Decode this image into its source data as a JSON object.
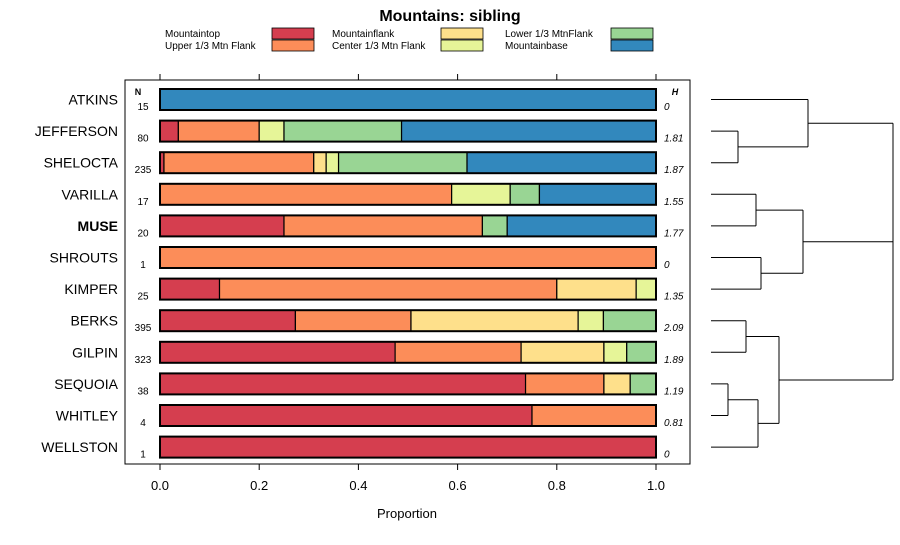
{
  "chart_data": {
    "type": "stacked-horizontal-bar",
    "title": "Mountains: sibling",
    "xlabel": "Proportion",
    "xlim": [
      0,
      1
    ],
    "xticks": [
      "0.0",
      "0.2",
      "0.4",
      "0.6",
      "0.8",
      "1.0"
    ],
    "n_header": "N",
    "h_header": "H",
    "legend": [
      {
        "name": "Mountaintop",
        "color": "#D53E4F"
      },
      {
        "name": "Upper 1/3 Mtn Flank",
        "color": "#FC8D59"
      },
      {
        "name": "Mountainflank",
        "color": "#FEE08B"
      },
      {
        "name": "Center 1/3 Mtn Flank",
        "color": "#E6F598"
      },
      {
        "name": "Lower 1/3 MtnFlank",
        "color": "#99D594"
      },
      {
        "name": "Mountainbase",
        "color": "#3288BD"
      }
    ],
    "rows": [
      {
        "label": "ATKINS",
        "bold": false,
        "n": "15",
        "h": "0",
        "values": [
          0,
          0,
          0,
          0,
          0,
          1.0
        ]
      },
      {
        "label": "JEFFERSON",
        "bold": false,
        "n": "80",
        "h": "1.81",
        "values": [
          0.037,
          0.163,
          0,
          0.05,
          0.237,
          0.513
        ]
      },
      {
        "label": "SHELOCTA",
        "bold": false,
        "n": "235",
        "h": "1.87",
        "values": [
          0.008,
          0.302,
          0.025,
          0.025,
          0.259,
          0.381
        ]
      },
      {
        "label": "VARILLA",
        "bold": false,
        "n": "17",
        "h": "1.55",
        "values": [
          0,
          0.588,
          0,
          0.118,
          0.059,
          0.235
        ]
      },
      {
        "label": "MUSE",
        "bold": true,
        "n": "20",
        "h": "1.77",
        "values": [
          0.25,
          0.4,
          0,
          0,
          0.05,
          0.3
        ]
      },
      {
        "label": "SHROUTS",
        "bold": false,
        "n": "1",
        "h": "0",
        "values": [
          0,
          1.0,
          0,
          0,
          0,
          0
        ]
      },
      {
        "label": "KIMPER",
        "bold": false,
        "n": "25",
        "h": "1.35",
        "values": [
          0.12,
          0.68,
          0.16,
          0.04,
          0,
          0
        ]
      },
      {
        "label": "BERKS",
        "bold": false,
        "n": "395",
        "h": "2.09",
        "values": [
          0.273,
          0.233,
          0.337,
          0.051,
          0.106,
          0
        ]
      },
      {
        "label": "GILPIN",
        "bold": false,
        "n": "323",
        "h": "1.89",
        "values": [
          0.474,
          0.254,
          0.167,
          0.046,
          0.059,
          0
        ]
      },
      {
        "label": "SEQUOIA",
        "bold": false,
        "n": "38",
        "h": "1.19",
        "values": [
          0.737,
          0.158,
          0.053,
          0,
          0.052,
          0
        ]
      },
      {
        "label": "WHITLEY",
        "bold": false,
        "n": "4",
        "h": "0.81",
        "values": [
          0.75,
          0.25,
          0,
          0,
          0,
          0
        ]
      },
      {
        "label": "WELLSTON",
        "bold": false,
        "n": "1",
        "h": "0",
        "values": [
          1.0,
          0,
          0,
          0,
          0,
          0
        ]
      }
    ]
  }
}
